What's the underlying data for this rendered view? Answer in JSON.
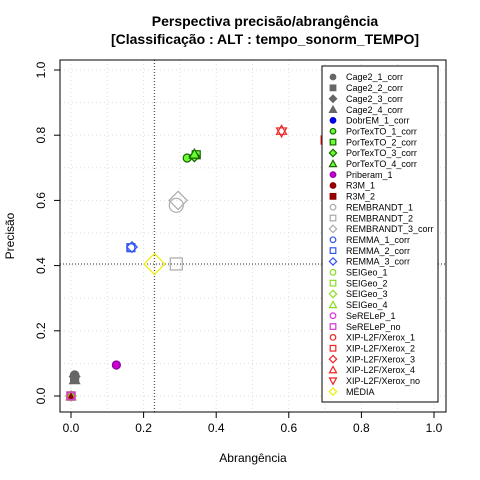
{
  "chart_data": {
    "type": "scatter",
    "title_line1": "Perspectiva precisão/abrangência",
    "title_line2": "[Classificação : ALT : tempo_sonorm_TEMPO]",
    "xlabel": "Abrangência",
    "ylabel": "Precisão",
    "xlim": [
      0,
      1
    ],
    "ylim": [
      0,
      1
    ],
    "xticks": [
      "0.0",
      "0.2",
      "0.4",
      "0.6",
      "0.8",
      "1.0"
    ],
    "yticks": [
      "0.0",
      "0.2",
      "0.4",
      "0.6",
      "0.8",
      "1.0"
    ],
    "grid": true,
    "legend_position": "right",
    "reference_lines": {
      "x": 0.23,
      "y": 0.405
    },
    "series": [
      {
        "name": "Cage2_1_corr",
        "color": "#666666",
        "fill": "#666666",
        "marker": "circle",
        "x": 0.01,
        "y": 0.065
      },
      {
        "name": "Cage2_2_corr",
        "color": "#666666",
        "fill": "#666666",
        "marker": "square",
        "x": 0.01,
        "y": 0.055
      },
      {
        "name": "Cage2_3_corr",
        "color": "#666666",
        "fill": "#666666",
        "marker": "diamond",
        "x": 0.01,
        "y": 0.06
      },
      {
        "name": "Cage2_4_corr",
        "color": "#666666",
        "fill": "#666666",
        "marker": "triangle",
        "x": 0.01,
        "y": 0.05
      },
      {
        "name": "DobrEM_1_corr",
        "color": "#0000cc",
        "fill": "#0000ff",
        "marker": "circle",
        "x": 0.0,
        "y": 0.0
      },
      {
        "name": "PorTexTO_1_corr",
        "color": "#1a6600",
        "fill": "#66ff33",
        "marker": "circle",
        "x": 0.32,
        "y": 0.73
      },
      {
        "name": "PorTexTO_2_corr",
        "color": "#1a6600",
        "fill": "#66ff33",
        "marker": "square",
        "x": 0.345,
        "y": 0.74
      },
      {
        "name": "PorTexTO_3_corr",
        "color": "#1a6600",
        "fill": "#66ff33",
        "marker": "diamond",
        "x": 0.34,
        "y": 0.735
      },
      {
        "name": "PorTexTO_4_corr",
        "color": "#1a6600",
        "fill": "#66ff33",
        "marker": "triangle",
        "x": 0.34,
        "y": 0.742
      },
      {
        "name": "Priberam_1",
        "color": "#8800aa",
        "fill": "#cc00cc",
        "marker": "circle",
        "x": 0.125,
        "y": 0.095
      },
      {
        "name": "R3M_1",
        "color": "#880000",
        "fill": "#990000",
        "marker": "circle",
        "x": 0.0,
        "y": 0.0
      },
      {
        "name": "R3M_2",
        "color": "#880000",
        "fill": "#990000",
        "marker": "square",
        "x": 0.0,
        "y": 0.0
      },
      {
        "name": "REMBRANDT_1",
        "color": "#aaaaaa",
        "fill": "none",
        "marker": "circle",
        "x": 0.29,
        "y": 0.585
      },
      {
        "name": "REMBRANDT_2",
        "color": "#aaaaaa",
        "fill": "none",
        "marker": "square",
        "x": 0.29,
        "y": 0.405
      },
      {
        "name": "REMBRANDT_3_corr",
        "color": "#aaaaaa",
        "fill": "none",
        "marker": "diamond",
        "x": 0.295,
        "y": 0.6
      },
      {
        "name": "REMMA_1_corr",
        "color": "#3355ee",
        "fill": "none",
        "marker": "circle",
        "x": 0.165,
        "y": 0.455
      },
      {
        "name": "REMMA_2_corr",
        "color": "#3355ee",
        "fill": "none",
        "marker": "square",
        "x": 0.165,
        "y": 0.455
      },
      {
        "name": "REMMA_3_corr",
        "color": "#3355ee",
        "fill": "none",
        "marker": "diamond",
        "x": 0.168,
        "y": 0.457
      },
      {
        "name": "SEIGeo_1",
        "color": "#88dd22",
        "fill": "none",
        "marker": "circle",
        "x": 0.0,
        "y": 0.0
      },
      {
        "name": "SEIGeo_2",
        "color": "#88dd22",
        "fill": "none",
        "marker": "square",
        "x": 0.0,
        "y": 0.0
      },
      {
        "name": "SEIGeo_3",
        "color": "#88dd22",
        "fill": "none",
        "marker": "diamond",
        "x": 0.0,
        "y": 0.0
      },
      {
        "name": "SEIGeo_4",
        "color": "#88dd22",
        "fill": "none",
        "marker": "triangle",
        "x": 0.0,
        "y": 0.0
      },
      {
        "name": "SeRELeP_1",
        "color": "#dd33dd",
        "fill": "none",
        "marker": "circle",
        "x": 0.0,
        "y": 0.0
      },
      {
        "name": "SeRELeP_no",
        "color": "#dd33dd",
        "fill": "none",
        "marker": "square",
        "x": 0.0,
        "y": 0.0
      },
      {
        "name": "XIP-L2F/Xerox_1",
        "color": "#ee2222",
        "fill": "none",
        "marker": "circle",
        "x": 0.71,
        "y": 0.79
      },
      {
        "name": "XIP-L2F/Xerox_2",
        "color": "#ee2222",
        "fill": "none",
        "marker": "square",
        "x": 0.7,
        "y": 0.785
      },
      {
        "name": "XIP-L2F/Xerox_3",
        "color": "#ee2222",
        "fill": "none",
        "marker": "diamond",
        "x": 0.705,
        "y": 0.79
      },
      {
        "name": "XIP-L2F/Xerox_4",
        "color": "#ee2222",
        "fill": "none",
        "marker": "triangle",
        "x": 0.58,
        "y": 0.815
      },
      {
        "name": "XIP-L2F/Xerox_no",
        "color": "#ee2222",
        "fill": "none",
        "marker": "triangle-down",
        "x": 0.58,
        "y": 0.81
      },
      {
        "name": "MÉDIA",
        "color": "#eeee00",
        "fill": "none",
        "marker": "diamond",
        "x": 0.23,
        "y": 0.405
      }
    ]
  }
}
